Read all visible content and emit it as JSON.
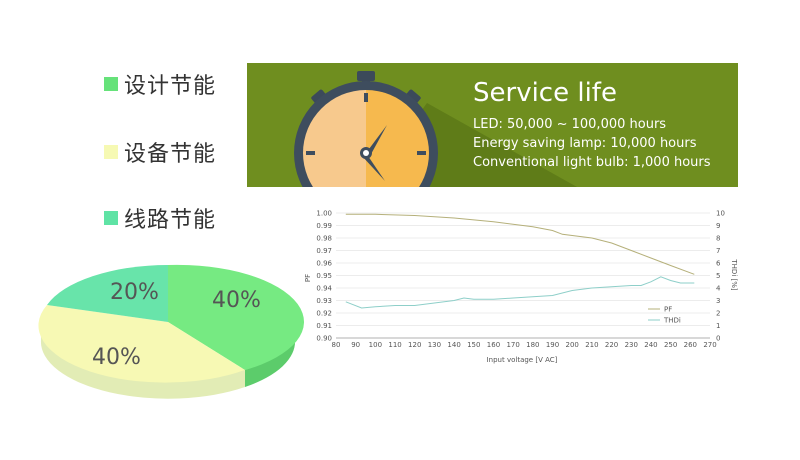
{
  "legend": [
    {
      "label": "设计节能",
      "color": "#66e27a"
    },
    {
      "label": "设备节能",
      "color": "#f6f9b3"
    },
    {
      "label": "线路节能",
      "color": "#5fe3a5"
    }
  ],
  "banner": {
    "title": "Service life",
    "lines": [
      "LED: 50,000 ~ 100,000 hours",
      "Energy saving lamp: 10,000 hours",
      "Conventional light bulb: 1,000 hours"
    ],
    "background": "#6f8e1f",
    "icon": "stopwatch-icon"
  },
  "pie": {
    "slices": [
      {
        "label": "40%",
        "value": 40,
        "color": "#76ea82"
      },
      {
        "label": "40%",
        "value": 40,
        "color": "#f7f9b4"
      },
      {
        "label": "20%",
        "value": 20,
        "color": "#68e4aa"
      }
    ]
  },
  "chart_data": {
    "type": "line",
    "xlabel": "Input voltage [V AC]",
    "ylabel": "PF",
    "y2label": "THDi [%]",
    "x_ticks": [
      "80",
      "90",
      "100",
      "110",
      "120",
      "130",
      "140",
      "150",
      "160",
      "170",
      "180",
      "190",
      "200",
      "210",
      "220",
      "230",
      "240",
      "250",
      "260",
      "270"
    ],
    "y_ticks": [
      "1.00",
      "0.99",
      "0.98",
      "0.97",
      "0.96",
      "0.95",
      "0.94",
      "0.93",
      "0.92",
      "0.91",
      "0.90"
    ],
    "y2_ticks": [
      "10",
      "9",
      "8",
      "7",
      "6",
      "5",
      "4",
      "3",
      "2",
      "1",
      "0"
    ],
    "xlim": [
      80,
      270
    ],
    "ylim": [
      0.9,
      1.0
    ],
    "y2lim": [
      0,
      10
    ],
    "legend_position": "bottom-right",
    "series": [
      {
        "name": "PF",
        "axis": "left",
        "color": "#b5b07a",
        "x": [
          85,
          100,
          120,
          140,
          160,
          180,
          190,
          195,
          210,
          220,
          230,
          240,
          250,
          262
        ],
        "y": [
          0.999,
          0.999,
          0.998,
          0.996,
          0.993,
          0.989,
          0.986,
          0.983,
          0.98,
          0.976,
          0.97,
          0.964,
          0.958,
          0.951
        ]
      },
      {
        "name": "THDi",
        "axis": "right",
        "color": "#8ecfc9",
        "x": [
          85,
          93,
          100,
          110,
          120,
          130,
          140,
          145,
          150,
          160,
          170,
          180,
          190,
          200,
          210,
          220,
          230,
          235,
          240,
          245,
          250,
          255,
          262
        ],
        "y": [
          2.9,
          2.4,
          2.5,
          2.6,
          2.6,
          2.8,
          3.0,
          3.2,
          3.1,
          3.1,
          3.2,
          3.3,
          3.4,
          3.8,
          4.0,
          4.1,
          4.2,
          4.2,
          4.5,
          4.9,
          4.6,
          4.4,
          4.4
        ]
      }
    ]
  }
}
